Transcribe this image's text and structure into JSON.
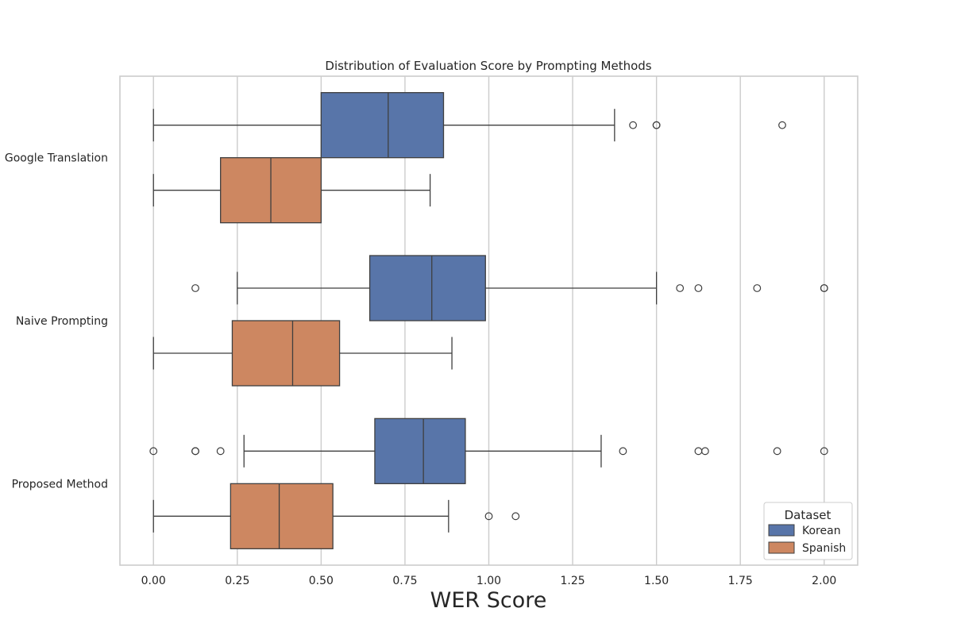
{
  "chart_data": {
    "type": "boxplot",
    "orientation": "horizontal",
    "title": "Distribution of Evaluation Score by Prompting Methods",
    "xlabel": "WER Score",
    "ylabel": "",
    "xlim": [
      -0.1,
      2.1
    ],
    "xticks": [
      0.0,
      0.25,
      0.5,
      0.75,
      1.0,
      1.25,
      1.5,
      1.75,
      2.0
    ],
    "xtick_labels": [
      "0.00",
      "0.25",
      "0.50",
      "0.75",
      "1.00",
      "1.25",
      "1.50",
      "1.75",
      "2.00"
    ],
    "grid": "vertical",
    "categories": [
      "Google Translation",
      "Naive Prompting",
      "Proposed Method"
    ],
    "legend": {
      "title": "Dataset",
      "placement": "bottom-right"
    },
    "series": [
      {
        "name": "Korean",
        "color": "#5875a9",
        "boxes": [
          {
            "whisker_low": 0.0,
            "q1": 0.5,
            "median": 0.7,
            "q3": 0.865,
            "whisker_high": 1.375,
            "outliers": [
              1.43,
              1.5,
              1.5,
              1.875
            ]
          },
          {
            "whisker_low": 0.25,
            "q1": 0.645,
            "median": 0.83,
            "q3": 0.99,
            "whisker_high": 1.5,
            "outliers": [
              0.125,
              1.57,
              1.625,
              1.8,
              2.0,
              2.0
            ]
          },
          {
            "whisker_low": 0.27,
            "q1": 0.66,
            "median": 0.805,
            "q3": 0.93,
            "whisker_high": 1.335,
            "outliers": [
              0.0,
              0.125,
              0.125,
              0.2,
              1.4,
              1.625,
              1.645,
              1.86,
              2.0
            ]
          }
        ]
      },
      {
        "name": "Spanish",
        "color": "#cd8761",
        "boxes": [
          {
            "whisker_low": 0.0,
            "q1": 0.2,
            "median": 0.35,
            "q3": 0.5,
            "whisker_high": 0.825,
            "outliers": []
          },
          {
            "whisker_low": 0.0,
            "q1": 0.235,
            "median": 0.415,
            "q3": 0.555,
            "whisker_high": 0.89,
            "outliers": []
          },
          {
            "whisker_low": 0.0,
            "q1": 0.23,
            "median": 0.375,
            "q3": 0.535,
            "whisker_high": 0.88,
            "outliers": [
              1.0,
              1.08
            ]
          }
        ]
      }
    ]
  }
}
